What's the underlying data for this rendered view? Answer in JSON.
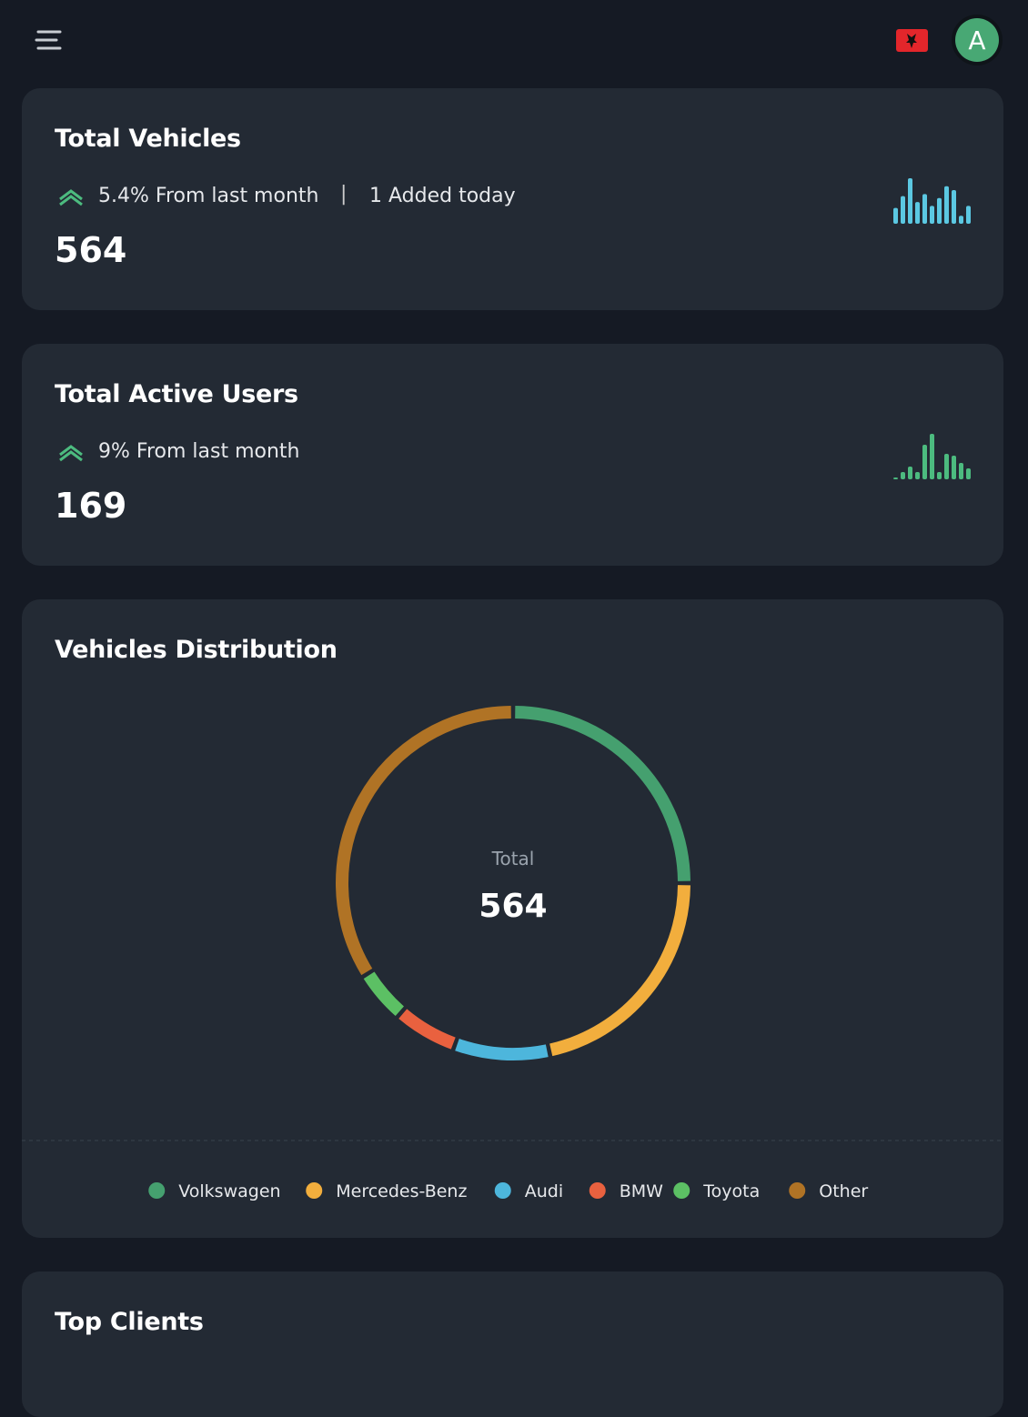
{
  "header": {
    "avatar": "A"
  },
  "cards": [
    {
      "title": "Total Vehicles",
      "change": "5.4% From last month",
      "extra": "1 Added today",
      "value": 564,
      "sparkline": {
        "color": "#5bc8e2",
        "values": [
          16,
          28,
          46,
          22,
          30,
          18,
          26,
          38,
          34,
          8,
          18
        ]
      }
    },
    {
      "title": "Total Active Users",
      "change": "9% From last month",
      "value": 169,
      "sparkline": {
        "color": "#4cbb7f",
        "values": [
          2,
          8,
          14,
          8,
          38,
          50,
          8,
          28,
          26,
          18,
          12
        ]
      }
    }
  ],
  "chart_data": {
    "type": "donut",
    "title": "Vehicles Distribution",
    "center_label": "Total",
    "center_value": 564,
    "categories": [
      "Volkswagen",
      "Mercedes-Benz",
      "Audi",
      "BMW",
      "Toyota",
      "Other"
    ],
    "values": [
      141,
      122,
      50,
      33,
      27,
      191
    ],
    "colors": [
      "#45a06f",
      "#f2ae3d",
      "#4db6dc",
      "#e9613f",
      "#5cc064",
      "#b07325"
    ]
  },
  "top_clients": {
    "title": "Top Clients"
  }
}
